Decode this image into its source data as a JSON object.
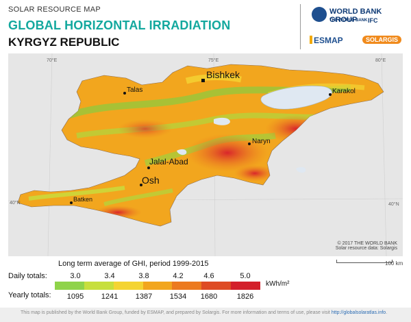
{
  "header": {
    "kicker": "SOLAR RESOURCE MAP",
    "title": "GLOBAL HORIZONTAL IRRADIATION",
    "subtitle": "KYRGYZ REPUBLIC"
  },
  "logos": {
    "world_bank_group": "WORLD BANK GROUP",
    "world_bank": "THE WORLD BANK",
    "ifc": "IFC",
    "esmap": "ESMAP",
    "solargis": "SOLARGIS"
  },
  "map": {
    "graticule": {
      "lon_labels": [
        "70°E",
        "75°E",
        "80°E"
      ],
      "lat_labels": [
        "40°N",
        "40°N"
      ]
    },
    "cities": [
      "Bishkek",
      "Talas",
      "Karakol",
      "Naryn",
      "Jalal-Abad",
      "Osh",
      "Batken"
    ],
    "capital": "Bishkek",
    "copyright_line1": "© 2017 THE WORLD BANK",
    "copyright_line2": "Solar resource data: Solargis",
    "scale_bar": "100 km",
    "colors": {
      "background": "#e6e6e6",
      "water": "#dfe8f2",
      "low_ghi": "#9bc63a",
      "mid_ghi": "#f2a61e",
      "high_ghi": "#d9262b"
    }
  },
  "legend": {
    "heading": "Long term average of GHI, period 1999-2015",
    "daily_label": "Daily totals:",
    "yearly_label": "Yearly totals:",
    "daily_ticks": [
      "3.0",
      "3.4",
      "3.8",
      "4.2",
      "4.6",
      "5.0"
    ],
    "yearly_ticks": [
      "1095",
      "1241",
      "1387",
      "1534",
      "1680",
      "1826"
    ],
    "units": "kWh/m²",
    "colors": [
      "#8fd34a",
      "#c7df3d",
      "#f4d433",
      "#f2a61e",
      "#ec7a1f",
      "#de4b24",
      "#d3202b"
    ]
  },
  "footer": {
    "text": "This map is published by the World Bank Group, funded by ESMAP, and prepared by Solargis. For more information and terms of use, please visit ",
    "link": "http://globalsolaratlas.info",
    "end": "."
  }
}
